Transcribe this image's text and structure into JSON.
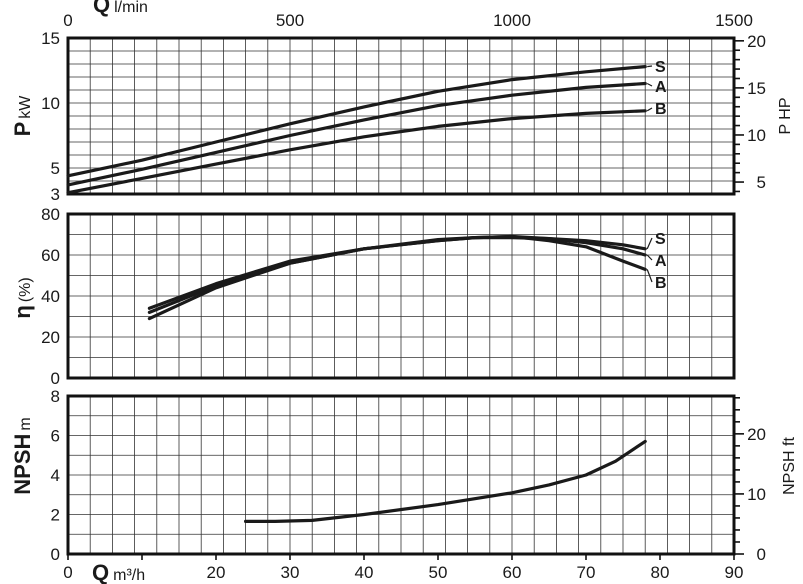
{
  "chart_data": [
    {
      "type": "line",
      "panel": "power",
      "xlim": [
        0,
        90
      ],
      "ylim": [
        3,
        15
      ],
      "ylabel": "P",
      "ylabel_unit": "kW",
      "yticks": [
        3,
        5,
        10,
        15
      ],
      "y2label": "P HP",
      "y2ticks": [
        5,
        10,
        15,
        20
      ],
      "series": [
        {
          "name": "S",
          "x": [
            0,
            10,
            20,
            30,
            40,
            50,
            60,
            70,
            78
          ],
          "y": [
            4.4,
            5.6,
            7.0,
            8.4,
            9.7,
            10.9,
            11.8,
            12.4,
            12.8
          ]
        },
        {
          "name": "A",
          "x": [
            0,
            10,
            20,
            30,
            40,
            50,
            60,
            70,
            78
          ],
          "y": [
            3.7,
            4.9,
            6.2,
            7.5,
            8.7,
            9.8,
            10.6,
            11.2,
            11.5
          ]
        },
        {
          "name": "B",
          "x": [
            0,
            10,
            20,
            30,
            40,
            50,
            60,
            70,
            78
          ],
          "y": [
            3.1,
            4.2,
            5.3,
            6.4,
            7.4,
            8.2,
            8.8,
            9.2,
            9.4
          ]
        }
      ]
    },
    {
      "type": "line",
      "panel": "efficiency",
      "xlim": [
        0,
        90
      ],
      "ylim": [
        0,
        80
      ],
      "ylabel": "η",
      "ylabel_unit": "(%)",
      "yticks": [
        0,
        20,
        40,
        60,
        80
      ],
      "series": [
        {
          "name": "S",
          "x": [
            11,
            20,
            30,
            40,
            50,
            55,
            60,
            65,
            70,
            75,
            78
          ],
          "y": [
            34,
            46,
            57,
            63,
            67,
            68.5,
            68.5,
            68,
            67,
            65,
            63
          ]
        },
        {
          "name": "A",
          "x": [
            11,
            20,
            30,
            40,
            50,
            55,
            60,
            65,
            70,
            75,
            78
          ],
          "y": [
            32,
            45,
            56,
            63,
            67,
            68.5,
            69,
            68,
            66,
            63,
            60
          ]
        },
        {
          "name": "B",
          "x": [
            11,
            20,
            30,
            40,
            50,
            55,
            60,
            65,
            70,
            75,
            78
          ],
          "y": [
            29,
            44,
            56,
            63,
            67.5,
            68.5,
            69,
            67,
            64,
            57,
            53
          ]
        }
      ]
    },
    {
      "type": "line",
      "panel": "npsh",
      "xlim": [
        0,
        90
      ],
      "ylim": [
        0,
        8
      ],
      "ylabel": "NPSH",
      "ylabel_unit": "m",
      "yticks": [
        0,
        2,
        4,
        6,
        8
      ],
      "y2label": "NPSH ft",
      "y2ticks": [
        0,
        10,
        20
      ],
      "xlabel": "Q",
      "xlabel_unit": "m³/h",
      "xticks": [
        0,
        10,
        20,
        30,
        40,
        50,
        60,
        70,
        80,
        90
      ],
      "series": [
        {
          "x": [
            24,
            28,
            33,
            40,
            50,
            60,
            65,
            70,
            74,
            78
          ],
          "y": [
            1.65,
            1.65,
            1.7,
            2.0,
            2.5,
            3.1,
            3.5,
            4.0,
            4.7,
            5.7
          ]
        }
      ]
    }
  ],
  "top_axis": {
    "label": "Q",
    "unit": "l/min",
    "ticks": [
      0,
      500,
      1000,
      1500
    ]
  }
}
